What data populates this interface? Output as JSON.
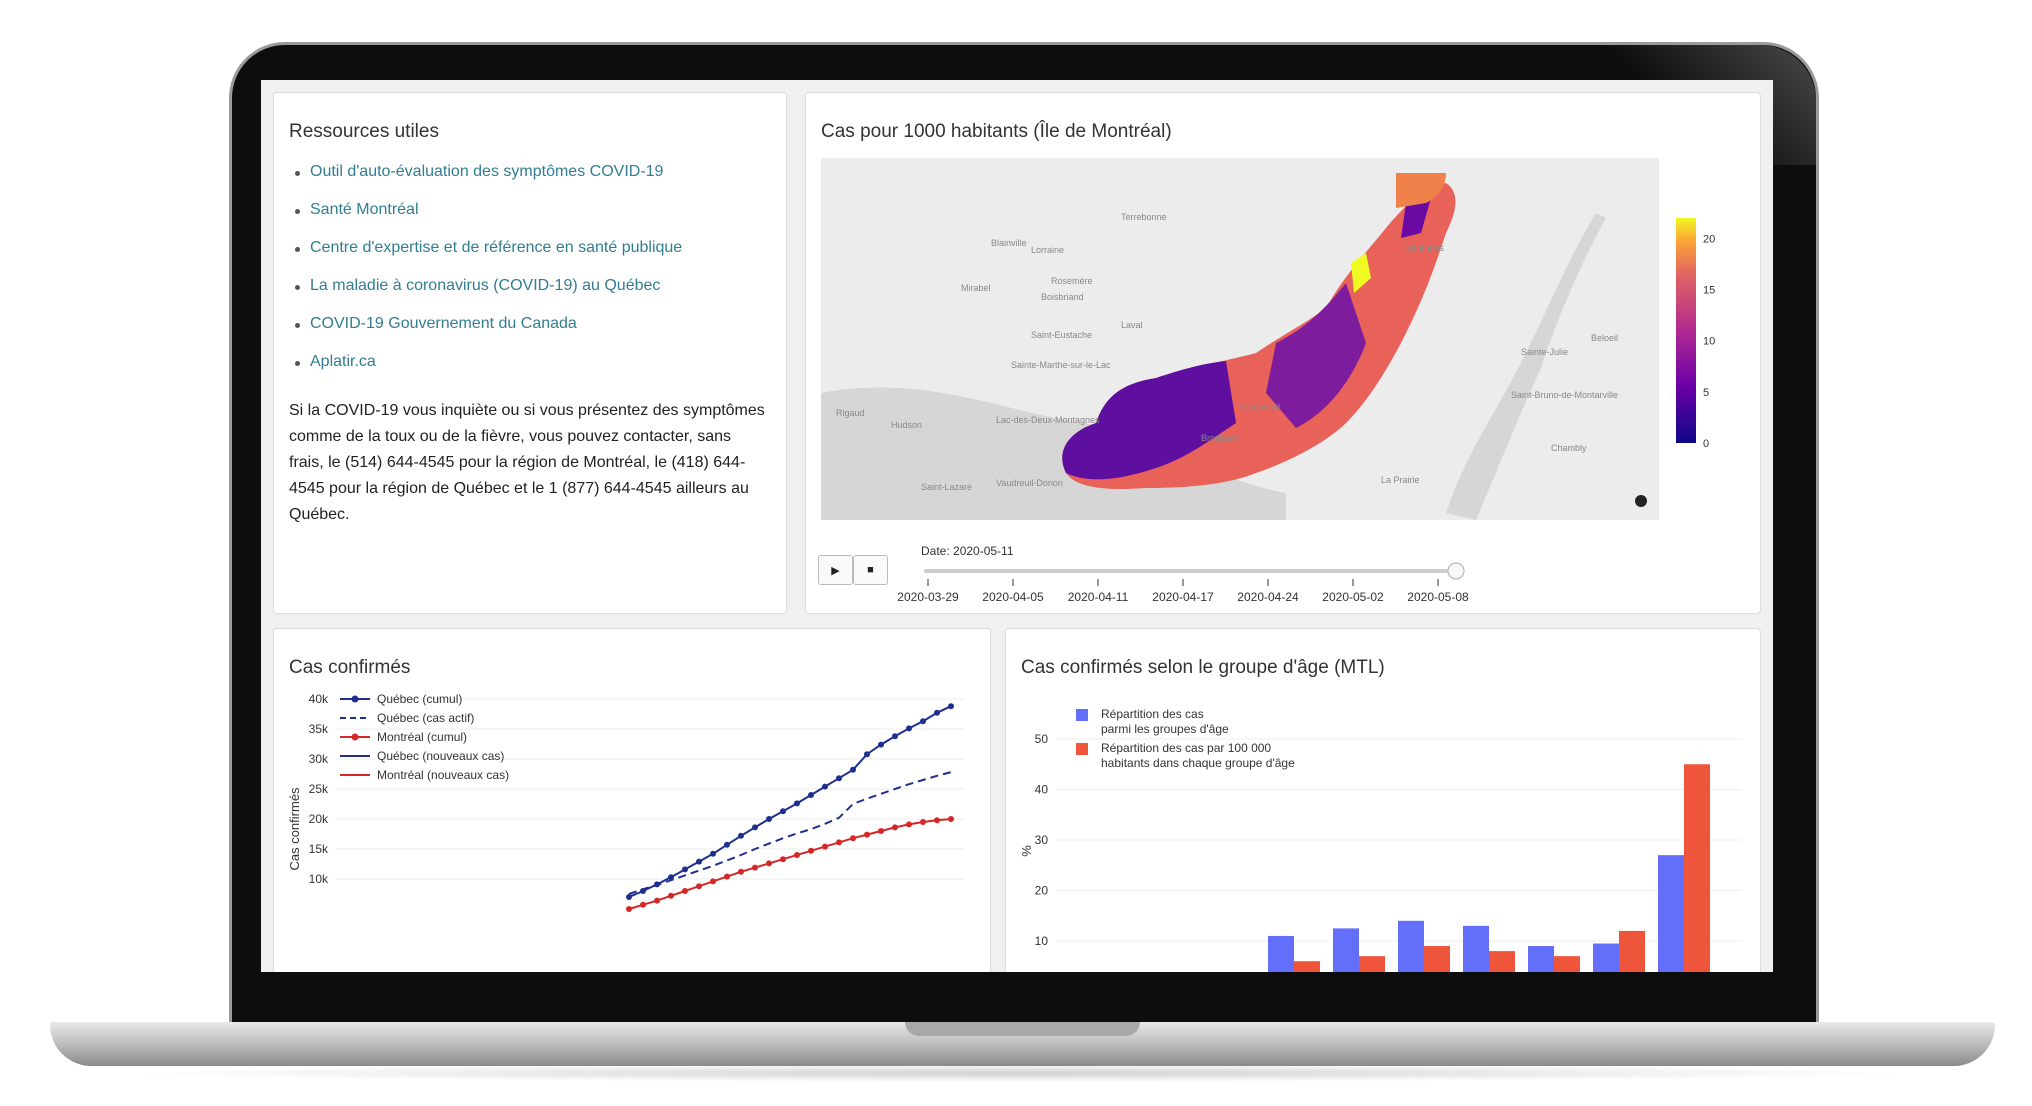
{
  "resources": {
    "title": "Ressources utiles",
    "links": [
      "Outil d'auto-évaluation des symptômes COVID-19",
      "Santé Montréal",
      "Centre d'expertise et de référence en santé publique",
      "La maladie à coronavirus (COVID-19) au Québec",
      "COVID-19 Gouvernement du Canada",
      "Aplatir.ca"
    ],
    "paragraph": "Si la COVID-19 vous inquiète ou si vous présentez des symptômes comme de la toux ou de la fièvre, vous pouvez contacter, sans frais, le (514) 644-4545 pour la région de Montréal, le (418) 644-4545 pour la région de Québec et le 1 (877) 644-4545 ailleurs au Québec."
  },
  "map": {
    "title": "Cas pour 1000 habitants (Île de Montréal)",
    "place_labels": [
      "Terrebonne",
      "Blainville",
      "Lorraine",
      "Rosemère",
      "Mirabel",
      "Boisbriand",
      "Laval",
      "Saint-Eustache",
      "Sainte-Marthe-sur-le-Lac",
      "Varennes",
      "Sainte-Julie",
      "Beloeil",
      "Saint-Bruno-de-Montarville",
      "Longueuil",
      "Hudson",
      "Brossard",
      "Chambly",
      "La Prairie",
      "Saint-Lazare",
      "Vaudreuil-Dorion",
      "Rigaud",
      "Lac-des-Deux-Montagnes"
    ],
    "colorbar": {
      "ticks": [
        "20",
        "15",
        "10",
        "5",
        "0"
      ],
      "min": 0,
      "max": 22
    },
    "info_icon": "info-icon",
    "slider": {
      "current_label": "Date: 2020-05-11",
      "ticks": [
        "2020-03-29",
        "2020-04-05",
        "2020-04-11",
        "2020-04-17",
        "2020-04-24",
        "2020-05-02",
        "2020-05-08"
      ],
      "position": 1.0
    },
    "play_icon": "play-icon",
    "stop_icon": "stop-icon"
  },
  "confirmed": {
    "title": "Cas confirmés",
    "chart_data": {
      "type": "line",
      "ylabel": "Cas confirmés",
      "y_ticks": [
        "40k",
        "35k",
        "30k",
        "25k",
        "20k",
        "15k",
        "10k"
      ],
      "legend": [
        "Québec (cumul)",
        "Québec (cas actif)",
        "Montréal (cumul)",
        "Québec  (nouveaux cas)",
        "Montréal (nouveaux cas)"
      ],
      "series": [
        {
          "name": "Québec (cumul)",
          "color": "#1f2f8f",
          "style": "line-markers",
          "values": [
            7000,
            8000,
            9100,
            10300,
            11600,
            12900,
            14200,
            15700,
            17200,
            18600,
            20000,
            21300,
            22600,
            24000,
            25400,
            26800,
            28200,
            30800,
            32400,
            33800,
            35100,
            36300,
            37700,
            38800
          ]
        },
        {
          "name": "Québec (cas actif)",
          "color": "#1f2f8f",
          "style": "dash",
          "values": [
            7500,
            8300,
            9000,
            9800,
            10600,
            11400,
            12200,
            13100,
            14000,
            15000,
            15900,
            16800,
            17600,
            18300,
            19200,
            20200,
            22500,
            23400,
            24200,
            25000,
            25800,
            26500,
            27200,
            27800
          ]
        },
        {
          "name": "Montréal (cumul)",
          "color": "#d62728",
          "style": "line-markers",
          "values": [
            5000,
            5700,
            6400,
            7200,
            8000,
            8800,
            9600,
            10400,
            11200,
            11900,
            12600,
            13300,
            14000,
            14700,
            15400,
            16100,
            16800,
            17400,
            18000,
            18600,
            19100,
            19500,
            19800,
            20000
          ]
        }
      ]
    }
  },
  "age": {
    "title": "Cas confirmés selon le groupe d'âge (MTL)",
    "chart_data": {
      "type": "bar",
      "ylabel": "%",
      "y_ticks": [
        "50",
        "40",
        "30",
        "20",
        "10"
      ],
      "series": [
        {
          "name": "Répartition des cas\nparmi les groupes d'âge",
          "color": "#636efa",
          "values": [
            11,
            12.5,
            14,
            13,
            9,
            9.5,
            27
          ]
        },
        {
          "name": "Répartition des cas par 100 000\nhabitants dans chaque groupe d'âge",
          "color": "#ef553b",
          "values": [
            6,
            7,
            9,
            8,
            7,
            12,
            45
          ]
        }
      ]
    }
  }
}
